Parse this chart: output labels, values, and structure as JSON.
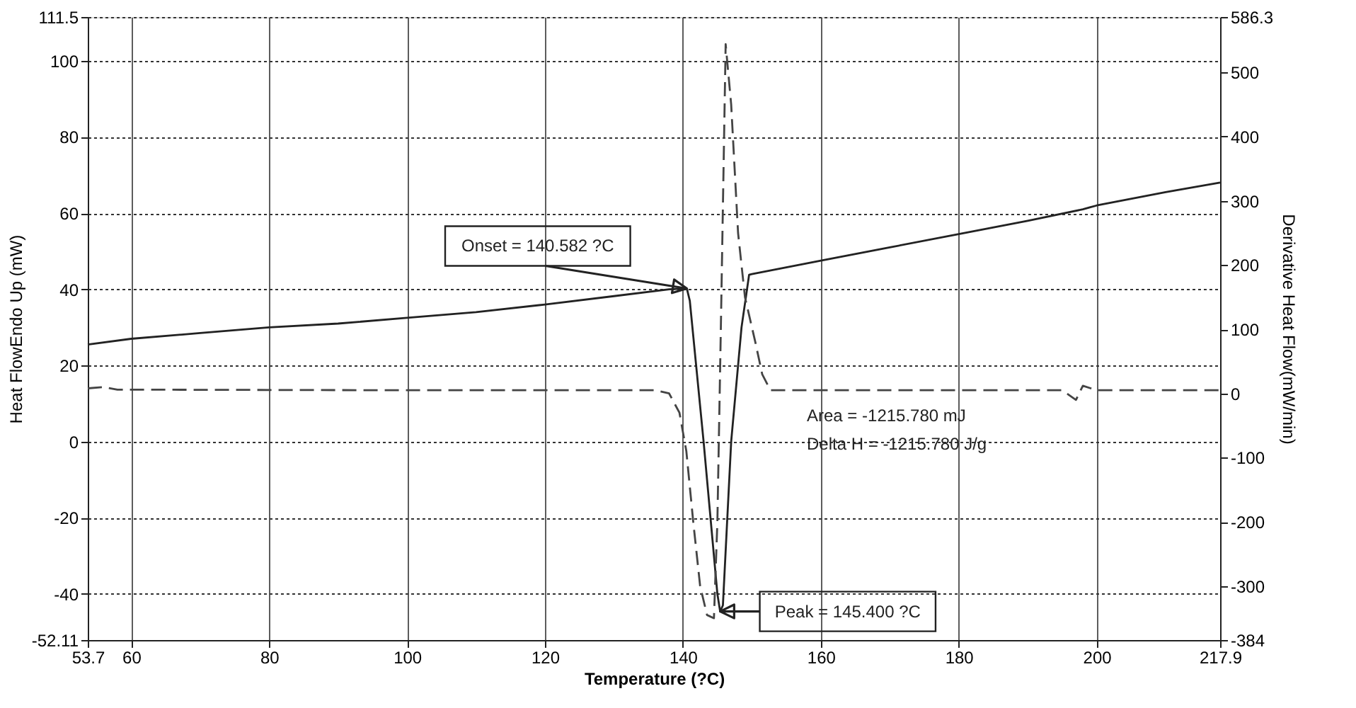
{
  "chart_data": {
    "type": "line",
    "xlabel": "Temperature (?C)",
    "ylabel": "Heat FlowEndo Up (mW)",
    "y2label": "Derivative Heat Flow(mW/min)",
    "xlim": [
      53.7,
      217.9
    ],
    "xticks": [
      53.7,
      60,
      80,
      100,
      120,
      140,
      160,
      180,
      200,
      217.9
    ],
    "ylim": [
      -52.11,
      111.5
    ],
    "yticks": [
      -52.11,
      -40,
      -20,
      0,
      20,
      40,
      60,
      80,
      100,
      111.5
    ],
    "y2lim": [
      -384,
      586.3
    ],
    "y2ticks": [
      -384,
      -300,
      -200,
      -100,
      0,
      100,
      200,
      300,
      400,
      500,
      586.3
    ],
    "grid": true,
    "marker": "none",
    "series": [
      {
        "color": "#222222",
        "line_style": "solid",
        "x": [
          53.7,
          60,
          70,
          80,
          90,
          100,
          110,
          120,
          130,
          138,
          140.3,
          140.6,
          141,
          143,
          145,
          145.4,
          145.8,
          147,
          148.5,
          149.6,
          150,
          160,
          170,
          180,
          190,
          198,
          199,
          200,
          210,
          217.9
        ],
        "values": [
          25.5,
          27,
          28.5,
          30,
          31,
          32.5,
          34,
          36,
          38.2,
          40,
          40.2,
          40,
          37,
          0,
          -40,
          -44.6,
          -43,
          0,
          30,
          43.8,
          44,
          47.5,
          51,
          54.5,
          58,
          61,
          61.5,
          62,
          65.5,
          68
        ]
      },
      {
        "color": "#444444",
        "line_style": "dashed",
        "axis": "y2",
        "x": [
          53.7,
          56,
          58,
          100,
          136,
          138,
          139.5,
          140.5,
          141.5,
          142.5,
          143.5,
          144.5,
          145,
          145.5,
          146.2,
          147,
          148,
          149,
          150.5,
          151.5,
          152.7,
          195,
          197,
          198,
          200,
          217.9
        ],
        "values": [
          8,
          10,
          6,
          5,
          5,
          0,
          -30,
          -90,
          -200,
          -300,
          -345,
          -350,
          -200,
          100,
          544,
          450,
          250,
          150,
          80,
          30,
          5,
          5,
          -10,
          12,
          5,
          5
        ]
      }
    ],
    "annotations": [
      {
        "text": "Onset = 140.582 ?C",
        "x": 140.582,
        "y": 40.2
      },
      {
        "text": "Peak = 145.400 ?C",
        "x": 145.4,
        "y": -44.6
      },
      "Area = -1215.780 mJ",
      "Delta H = -1215.780 J/g"
    ]
  }
}
